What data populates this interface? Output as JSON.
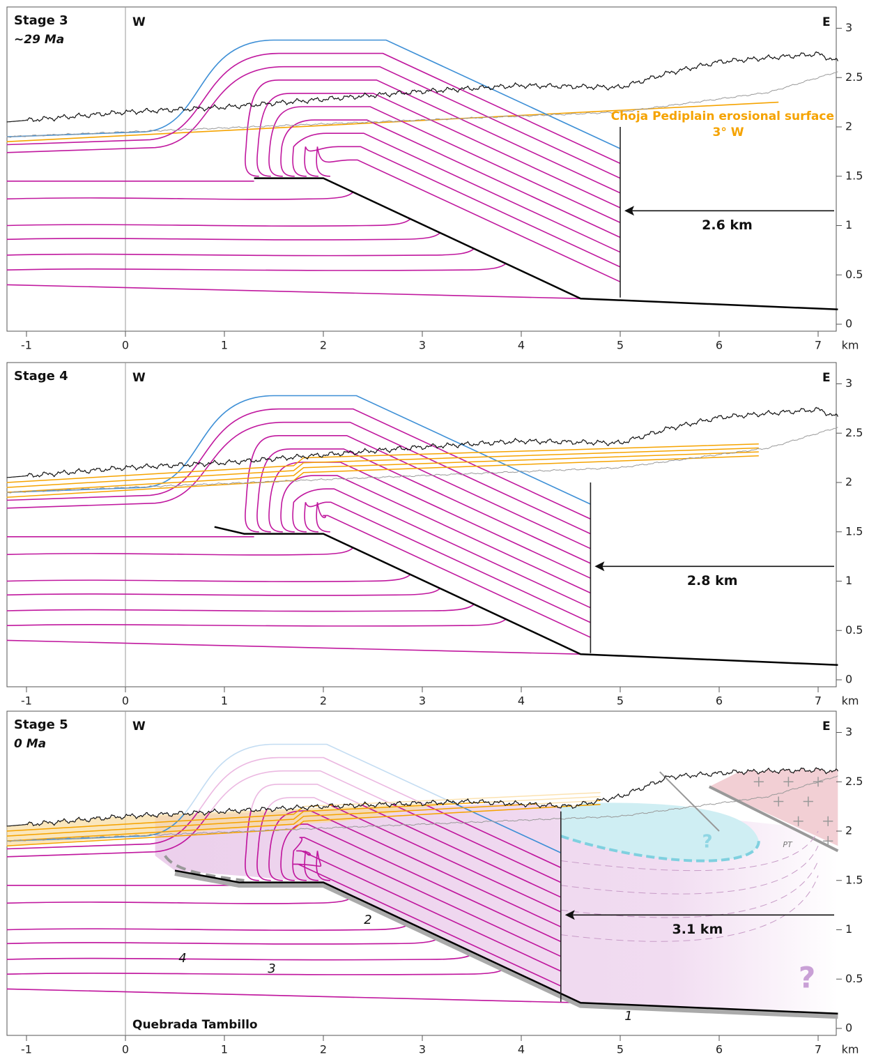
{
  "axes": {
    "xticks": [
      -1,
      0,
      1,
      2,
      3,
      4,
      5,
      6,
      7
    ],
    "yticks": [
      0,
      0.5,
      1,
      1.5,
      2,
      2.5,
      3
    ],
    "x_unit": "km"
  },
  "panels": [
    {
      "stage": "Stage 3",
      "age": "~29 Ma",
      "west": "W",
      "east": "E",
      "shortening": "2.6 km",
      "annotations": [
        "Choja Pediplain erosional surface",
        "3° W"
      ]
    },
    {
      "stage": "Stage 4",
      "west": "W",
      "east": "E",
      "shortening": "2.8 km"
    },
    {
      "stage": "Stage 5",
      "age": "0 Ma",
      "west": "W",
      "east": "E",
      "shortening": "3.1 km",
      "annotations": [
        "Quebrada Tambillo",
        "1",
        "2",
        "3",
        "4",
        "?",
        "?",
        "PT"
      ]
    }
  ]
}
